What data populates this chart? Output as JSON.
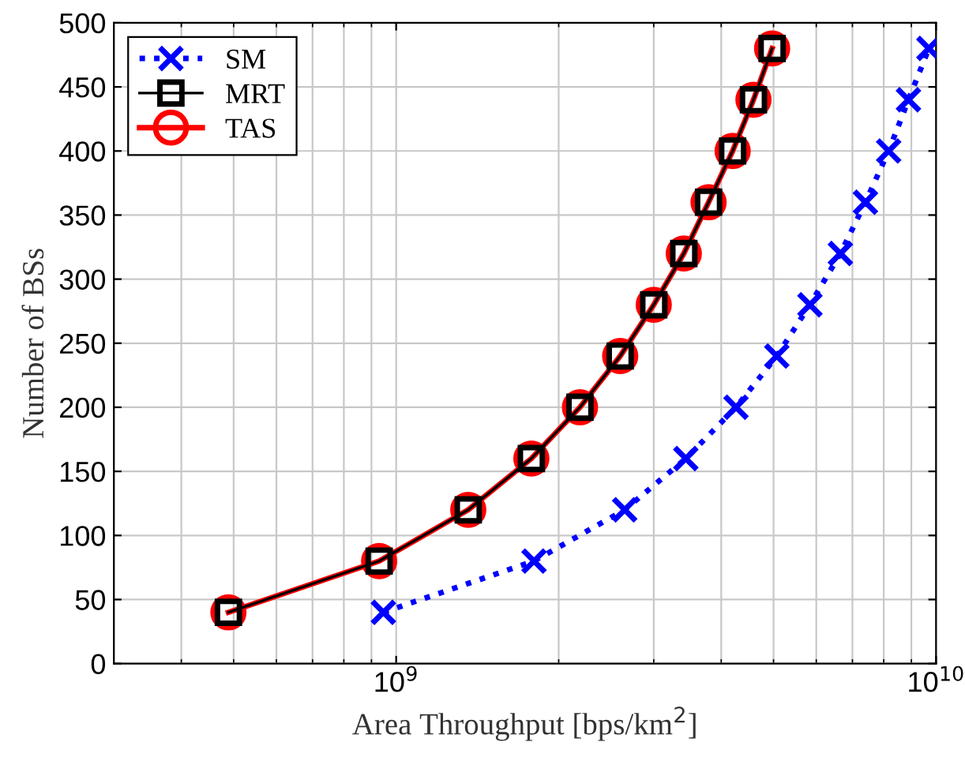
{
  "chart_data": {
    "type": "line",
    "xlabel": "Area Throughput [bps/km$^{2}$]",
    "ylabel": "Number of BSs",
    "log": "x",
    "grid": true,
    "legend": "top left",
    "xlim": [
      300000000.0,
      10000000000.0
    ],
    "xticks": [
      {
        "value": 1000000000.0,
        "label": "10$^{9}$"
      },
      {
        "value": 10000000000.0,
        "label": "10$^{10}$"
      }
    ],
    "ylim": [
      0,
      500
    ],
    "yticks": [
      0,
      50,
      100,
      150,
      200,
      250,
      300,
      350,
      400,
      450,
      500
    ],
    "series": [
      {
        "name": "SM",
        "color": "#0000ff",
        "marker": "cross",
        "line_style": "dotted",
        "x": [
          947000000.0,
          1800000000.0,
          2650000000.0,
          3440000000.0,
          4260000000.0,
          5070000000.0,
          5840000000.0,
          6650000000.0,
          7400000000.0,
          8170000000.0,
          8890000000.0,
          9700000000.0
        ],
        "values": [
          40,
          80,
          120,
          160,
          200,
          240,
          280,
          320,
          360,
          400,
          440,
          480
        ]
      },
      {
        "name": "MRT",
        "color": "#000000",
        "marker": "square",
        "line_style": "solid",
        "x": [
          489000000.0,
          930000000.0,
          1360000000.0,
          1780000000.0,
          2190000000.0,
          2600000000.0,
          3000000000.0,
          3410000000.0,
          3790000000.0,
          4200000000.0,
          4590000000.0,
          4970000000.0
        ],
        "values": [
          40,
          80,
          120,
          160,
          200,
          240,
          280,
          320,
          360,
          400,
          440,
          480
        ]
      },
      {
        "name": "TAS",
        "color": "#ff0000",
        "marker": "circle",
        "line_style": "solid",
        "x": [
          489000000.0,
          930000000.0,
          1360000000.0,
          1780000000.0,
          2190000000.0,
          2600000000.0,
          3000000000.0,
          3410000000.0,
          3790000000.0,
          4200000000.0,
          4590000000.0,
          4970000000.0
        ],
        "values": [
          40,
          80,
          120,
          160,
          200,
          240,
          280,
          320,
          360,
          400,
          440,
          480
        ]
      }
    ]
  }
}
